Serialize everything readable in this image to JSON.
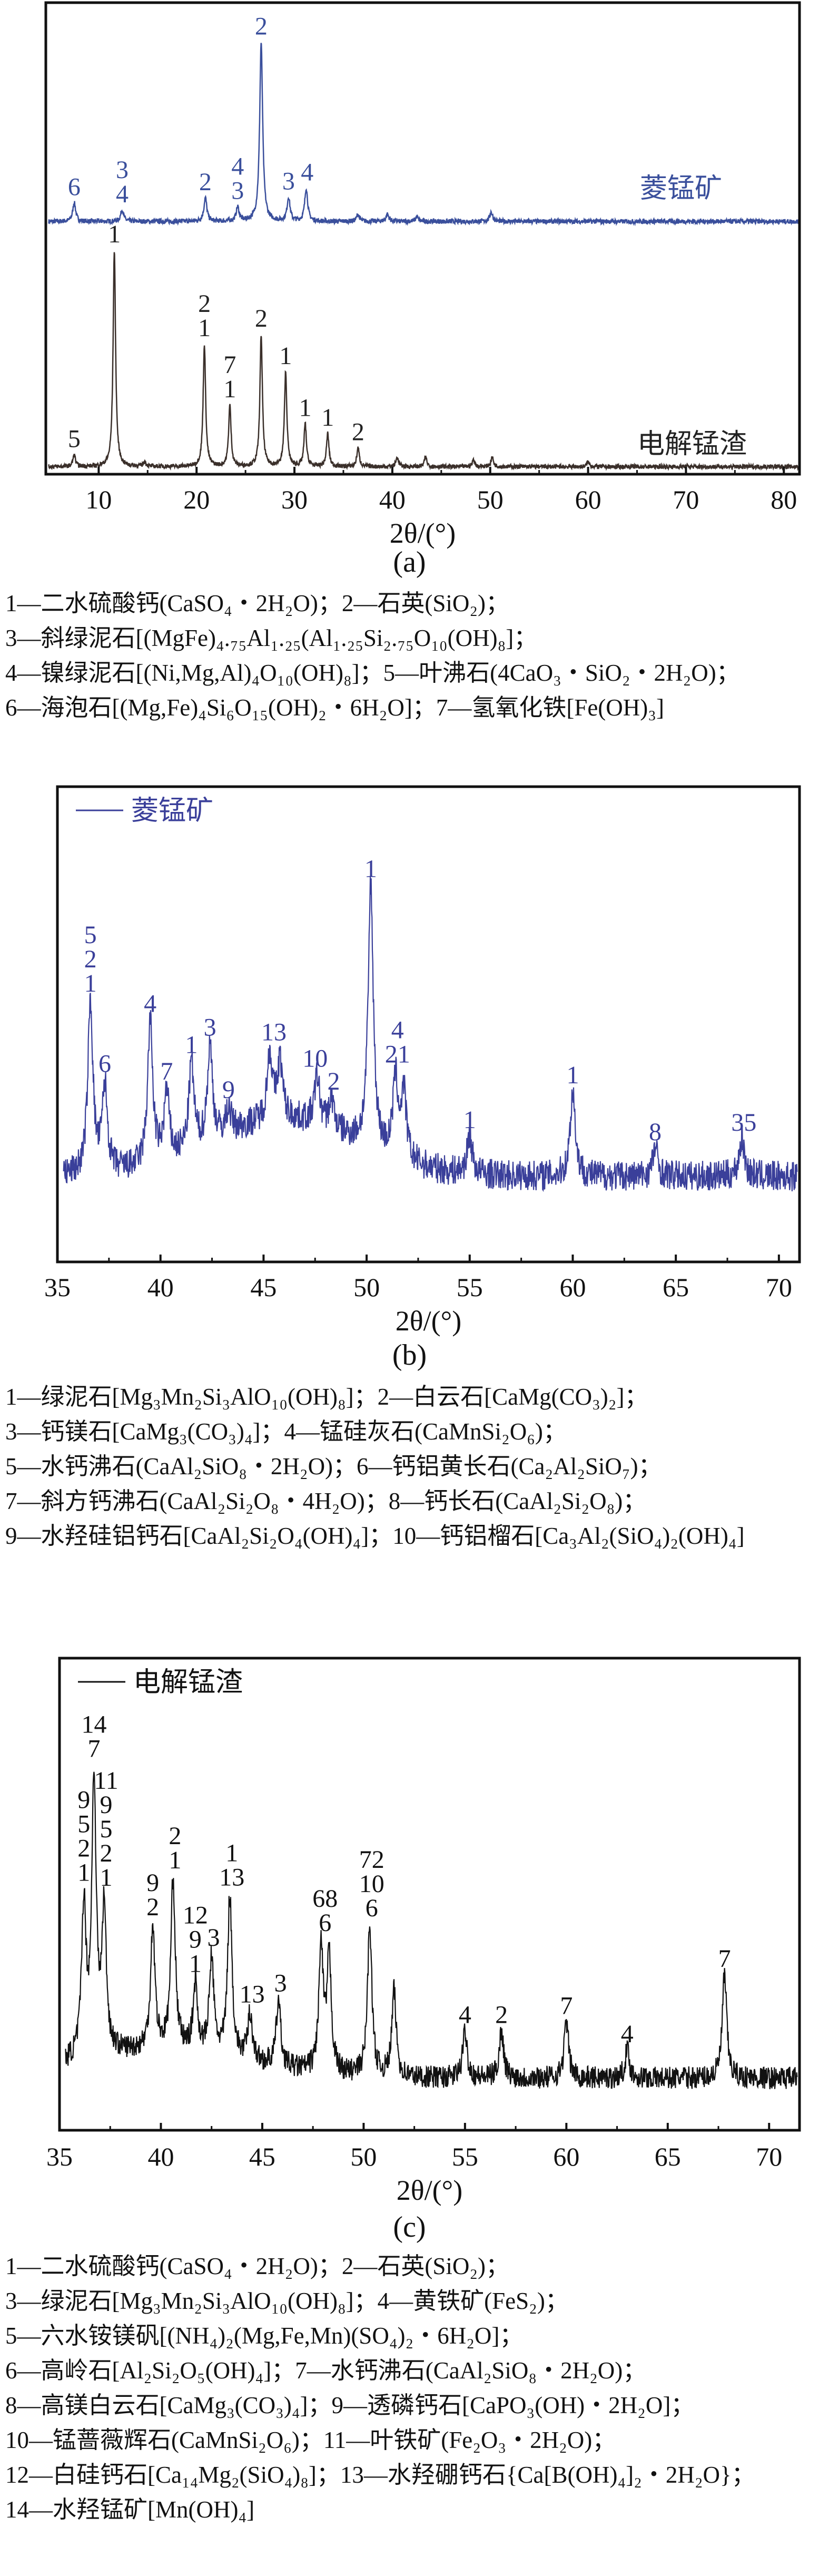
{
  "chart_data": [
    {
      "id": "a",
      "type": "line",
      "panel_label": "(a)",
      "xlabel": "2θ/(°)",
      "xlim": [
        4.6,
        81.6
      ],
      "ylim": [
        0,
        100
      ],
      "xticks": [
        "10",
        "20",
        "30",
        "40",
        "50",
        "60",
        "70",
        "80"
      ],
      "series": [
        {
          "name": "菱锰矿",
          "color": "#3a4f9c",
          "background": 53.6,
          "noise": 0.5,
          "width": 0.18,
          "peaks": [
            [
              7.5,
              4
            ],
            [
              12.4,
              2.5
            ],
            [
              20.9,
              5
            ],
            [
              24.2,
              3
            ],
            [
              26.6,
              38
            ],
            [
              29.4,
              5
            ],
            [
              31.2,
              7
            ],
            [
              36.5,
              1.5
            ],
            [
              39.5,
              1.5
            ],
            [
              42.5,
              1
            ],
            [
              50.1,
              2
            ]
          ],
          "labels": [
            [
              7.5,
              [
                "6"
              ]
            ],
            [
              12.4,
              [
                "3",
                "4"
              ]
            ],
            [
              20.9,
              [
                "2"
              ]
            ],
            [
              24.2,
              [
                "4",
                "3"
              ]
            ],
            [
              26.6,
              [
                "2"
              ]
            ],
            [
              29.4,
              [
                "3"
              ]
            ],
            [
              31.3,
              [
                "4"
              ]
            ]
          ]
        },
        {
          "name": "电解锰渣",
          "color": "#3a2f2a",
          "background": 1.6,
          "noise": 0.45,
          "width": 0.15,
          "peaks": [
            [
              7.5,
              2.5
            ],
            [
              11.6,
              46
            ],
            [
              14.7,
              1
            ],
            [
              20.8,
              26
            ],
            [
              23.4,
              13
            ],
            [
              26.6,
              28
            ],
            [
              29.1,
              20
            ],
            [
              31.1,
              9
            ],
            [
              33.4,
              7
            ],
            [
              36.5,
              4
            ],
            [
              40.5,
              2
            ],
            [
              43.4,
              2
            ],
            [
              48.3,
              1.5
            ],
            [
              50.2,
              2
            ],
            [
              60,
              1
            ]
          ],
          "labels": [
            [
              7.5,
              [
                "5"
              ]
            ],
            [
              11.6,
              [
                "1"
              ]
            ],
            [
              20.8,
              [
                "2",
                "1"
              ]
            ],
            [
              23.4,
              [
                "7",
                "1"
              ]
            ],
            [
              26.6,
              [
                "2"
              ]
            ],
            [
              29.1,
              [
                "1"
              ]
            ],
            [
              31.1,
              [
                "1"
              ]
            ],
            [
              33.4,
              [
                "1"
              ]
            ],
            [
              36.5,
              [
                "2"
              ]
            ]
          ]
        }
      ]
    },
    {
      "id": "b",
      "type": "line",
      "panel_label": "(b)",
      "xlabel": "2θ/(°)",
      "xlim": [
        35,
        71
      ],
      "ylim": [
        0,
        100
      ],
      "xticks": [
        "35",
        "40",
        "45",
        "50",
        "55",
        "60",
        "65",
        "70"
      ],
      "legend": "菱锰矿",
      "series": [
        {
          "name": "菱锰矿",
          "color": "#3a3f9a",
          "background": 18,
          "noise": 3.2,
          "width": 0.15,
          "hump": [
            46,
            5,
            12
          ],
          "peaks": [
            [
              36.6,
              36
            ],
            [
              37.3,
              18
            ],
            [
              39.5,
              30
            ],
            [
              40.3,
              14
            ],
            [
              41.5,
              18
            ],
            [
              42.4,
              20
            ],
            [
              43.3,
              5
            ],
            [
              45.3,
              14
            ],
            [
              45.8,
              12
            ],
            [
              47.6,
              10
            ],
            [
              48.3,
              6
            ],
            [
              50.2,
              55
            ],
            [
              51.4,
              16
            ],
            [
              51.8,
              14
            ],
            [
              55,
              8
            ],
            [
              60,
              18
            ],
            [
              64,
              6
            ],
            [
              68.2,
              8
            ]
          ],
          "labels": [
            [
              36.6,
              [
                "5",
                "2",
                "1"
              ]
            ],
            [
              37.3,
              [
                "6"
              ]
            ],
            [
              39.5,
              [
                "4"
              ]
            ],
            [
              40.3,
              [
                "7"
              ]
            ],
            [
              41.5,
              [
                "1"
              ]
            ],
            [
              42.4,
              [
                "3"
              ]
            ],
            [
              43.3,
              [
                "9"
              ]
            ],
            [
              45.5,
              [
                "13"
              ]
            ],
            [
              47.5,
              [
                "10"
              ]
            ],
            [
              48.4,
              [
                "2"
              ]
            ],
            [
              50.2,
              [
                "1"
              ]
            ],
            [
              51.5,
              [
                "4",
                "21"
              ]
            ],
            [
              55,
              [
                "1"
              ]
            ],
            [
              60,
              [
                "1"
              ]
            ],
            [
              64,
              [
                "8"
              ]
            ],
            [
              68.3,
              [
                "35"
              ]
            ]
          ]
        }
      ]
    },
    {
      "id": "c",
      "type": "line",
      "panel_label": "(c)",
      "xlabel": "2θ/(°)",
      "xlim": [
        35,
        71.5
      ],
      "ylim": [
        0,
        100
      ],
      "xticks": [
        "35",
        "40",
        "45",
        "50",
        "55",
        "60",
        "65",
        "70"
      ],
      "legend": "电解锰渣",
      "series": [
        {
          "name": "电解锰渣",
          "color": "#111111",
          "background": 11,
          "noise": 2.4,
          "width": 0.13,
          "hump": [
            40,
            6,
            6
          ],
          "peaks": [
            [
              36.2,
              32
            ],
            [
              36.7,
              58
            ],
            [
              37.2,
              30
            ],
            [
              39.6,
              26
            ],
            [
              40.6,
              36
            ],
            [
              41.7,
              14
            ],
            [
              42.5,
              20
            ],
            [
              43.4,
              34
            ],
            [
              44.4,
              10
            ],
            [
              45.8,
              14
            ],
            [
              47.9,
              26
            ],
            [
              48.3,
              24
            ],
            [
              50.3,
              32
            ],
            [
              51.5,
              18
            ],
            [
              55,
              10
            ],
            [
              56.8,
              10
            ],
            [
              60,
              12
            ],
            [
              63,
              6
            ],
            [
              67.8,
              22
            ]
          ],
          "labels": [
            [
              36.2,
              [
                "9",
                "5",
                "2",
                "1"
              ]
            ],
            [
              36.7,
              [
                "14",
                "7"
              ]
            ],
            [
              37.3,
              [
                "11",
                "9",
                "5",
                "2",
                "1"
              ]
            ],
            [
              39.6,
              [
                "9",
                "2"
              ]
            ],
            [
              40.7,
              [
                "2",
                "1"
              ]
            ],
            [
              41.7,
              [
                "12",
                "9",
                "1"
              ]
            ],
            [
              42.6,
              [
                "3"
              ]
            ],
            [
              43.5,
              [
                "1",
                "13"
              ]
            ],
            [
              44.5,
              [
                "13"
              ]
            ],
            [
              45.9,
              [
                "3"
              ]
            ],
            [
              48.1,
              [
                "68",
                "6"
              ]
            ],
            [
              50.4,
              [
                "72",
                "10",
                "6"
              ]
            ],
            [
              55,
              [
                "4"
              ]
            ],
            [
              56.8,
              [
                "2"
              ]
            ],
            [
              60,
              [
                "7"
              ]
            ],
            [
              63,
              [
                "4"
              ]
            ],
            [
              67.8,
              [
                "7"
              ]
            ]
          ]
        }
      ]
    }
  ],
  "legends": {
    "a": [
      "1—二水硫酸钙(CaSO₄・2H₂O)；2—石英(SiO₂)；",
      "3—斜绿泥石[(MgFe)₄.₇₅Al₁.₂₅(Al₁.₂₅Si₂.₇₅O₁₀(OH)₈]；",
      "4—镍绿泥石[(Ni,Mg,Al)₄O₁₀(OH)₈]；5—叶沸石(4CaO₃・SiO₂・2H₂O)；",
      "6—海泡石[(Mg,Fe)₄Si₆O₁₅(OH)₂・6H₂O]；7—氢氧化铁[Fe(OH)₃]"
    ],
    "b": [
      "1—绿泥石[Mg₃Mn₂Si₃AlO₁₀(OH)₈]；2—白云石[CaMg(CO₃)₂]；",
      "3—钙镁石[CaMg₃(CO₃)₄]；4—锰硅灰石(CaMnSi₂O₆)；",
      "5—水钙沸石(CaAl₂SiO₈・2H₂O)；6—钙铝黄长石(Ca₂Al₂SiO₇)；",
      "7—斜方钙沸石(CaAl₂Si₂O₈・4H₂O)；8—钙长石(CaAl₂Si₂O₈)；",
      "9—水羟硅铝钙石[CaAl₂Si₂O₄(OH)₄]；10—钙铝榴石[Ca₃Al₂(SiO₄)₂(OH)₄]"
    ],
    "c": [
      "1—二水硫酸钙(CaSO₄・2H₂O)；2—石英(SiO₂)；",
      "3—绿泥石[Mg₃Mn₂Si₃AlO₁₀(OH)₈]；4—黄铁矿(FeS₂)；",
      "5—六水铵镁矾[(NH₄)₂(Mg,Fe,Mn)(SO₄)₂・6H₂O]；",
      "6—高岭石[Al₂Si₂O₅(OH)₄]；7—水钙沸石(CaAl₂SiO₈・2H₂O)；",
      "8—高镁白云石[CaMg₃(CO₃)₄]；9—透磷钙石[CaPO₃(OH)・2H₂O]；",
      "10—锰蔷薇辉石(CaMnSi₂O₆)；11—叶铁矿(Fe₂O₃・2H₂O)；",
      "12—白硅钙石[Ca₁₄Mg₂(SiO₄)₈]；13—水羟硼钙石{Ca[B(OH)₄]₂・2H₂O}；",
      "14—水羟锰矿[Mn(OH)₄]"
    ]
  }
}
